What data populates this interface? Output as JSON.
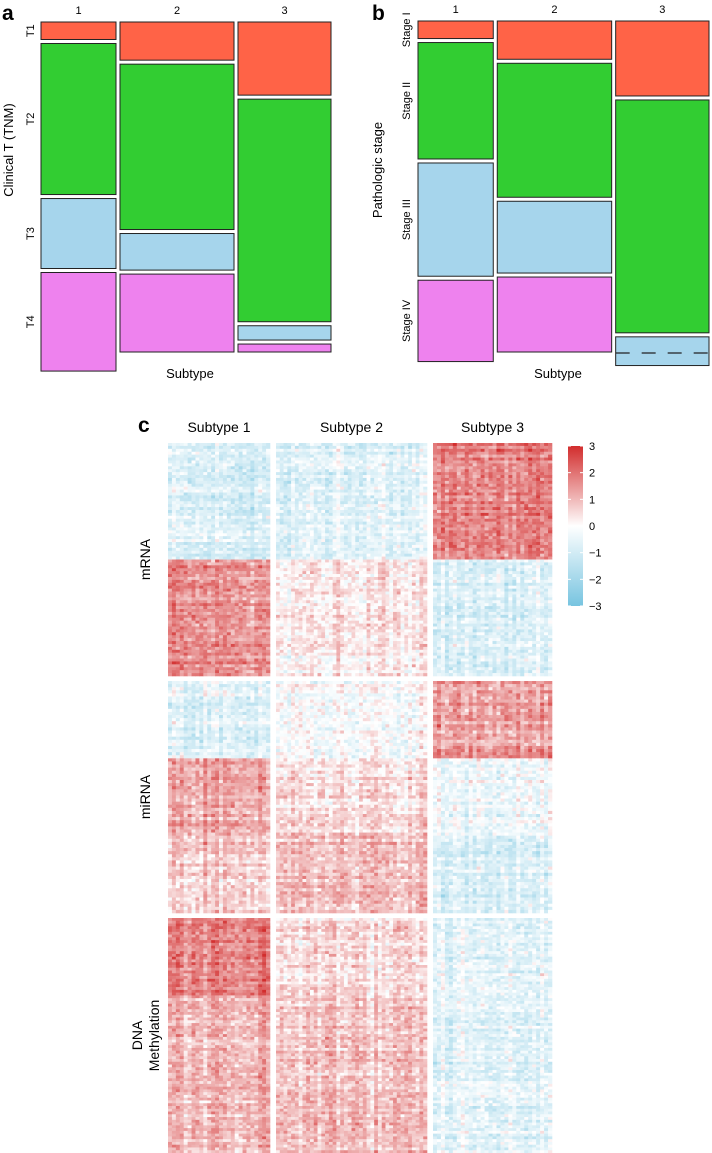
{
  "colors": {
    "T1": "#FF6347",
    "T2": "#32CD32",
    "T3": "#A6D5EC",
    "T4": "#EE82EE",
    "heat_low": "#77C4E0",
    "heat_mid": "#FFFFFF",
    "heat_high": "#D22D2D"
  },
  "panels": {
    "a": "a",
    "b": "b",
    "c": "c"
  },
  "chart_data": [
    {
      "type": "mosaic",
      "panel": "a",
      "xlabel": "Subtype",
      "ylabel": "Clinical T (TNM)",
      "columns": [
        "1",
        "2",
        "3"
      ],
      "column_widths": [
        0.25,
        0.38,
        0.31
      ],
      "categories": [
        "T1",
        "T2",
        "T3",
        "T4"
      ],
      "proportions": [
        [
          0.055,
          0.475,
          0.22,
          0.31
        ],
        [
          0.12,
          0.52,
          0.115,
          0.245
        ],
        [
          0.23,
          0.7,
          0.045,
          0.025
        ]
      ]
    },
    {
      "type": "mosaic",
      "panel": "b",
      "xlabel": "Subtype",
      "ylabel": "Pathologic stage",
      "columns": [
        "1",
        "2",
        "3"
      ],
      "column_widths": [
        0.25,
        0.38,
        0.31
      ],
      "categories": [
        "Stage I",
        "Stage II",
        "Stage III",
        "Stage IV"
      ],
      "proportions": [
        [
          0.055,
          0.365,
          0.355,
          0.255
        ],
        [
          0.12,
          0.42,
          0.225,
          0.235
        ],
        [
          0.235,
          0.73,
          0.09,
          0.0
        ]
      ]
    },
    {
      "type": "heatmap",
      "panel": "c",
      "columns": [
        "Subtype 1",
        "Subtype 2",
        "Subtype 3"
      ],
      "column_counts": [
        26,
        40,
        30
      ],
      "row_blocks": [
        {
          "name": "mRNA",
          "rows": 80,
          "pattern": [
            [
              -0.8,
              -0.6,
              1.8
            ],
            [
              1.6,
              0.4,
              -0.7
            ]
          ]
        },
        {
          "name": "miRNA",
          "rows": 75,
          "pattern": [
            [
              -0.6,
              -0.1,
              1.3
            ],
            [
              1.3,
              0.5,
              -0.3
            ],
            [
              0.7,
              0.9,
              -0.8
            ]
          ]
        },
        {
          "name": "DNA\nMethylation",
          "name_lines": [
            "DNA",
            "Methylation"
          ],
          "rows": 85,
          "pattern": [
            [
              1.8,
              0.5,
              -0.5
            ],
            [
              1.0,
              0.8,
              -0.6
            ],
            [
              1.1,
              0.9,
              -0.5
            ]
          ]
        }
      ],
      "legend_ticks": [
        3,
        2,
        1,
        0,
        -1,
        -2,
        -3
      ],
      "legend_tick_labels": [
        "3",
        "2",
        "1",
        "0",
        "−1",
        "−2",
        "−3"
      ],
      "value_range": [
        -3,
        3
      ]
    }
  ]
}
